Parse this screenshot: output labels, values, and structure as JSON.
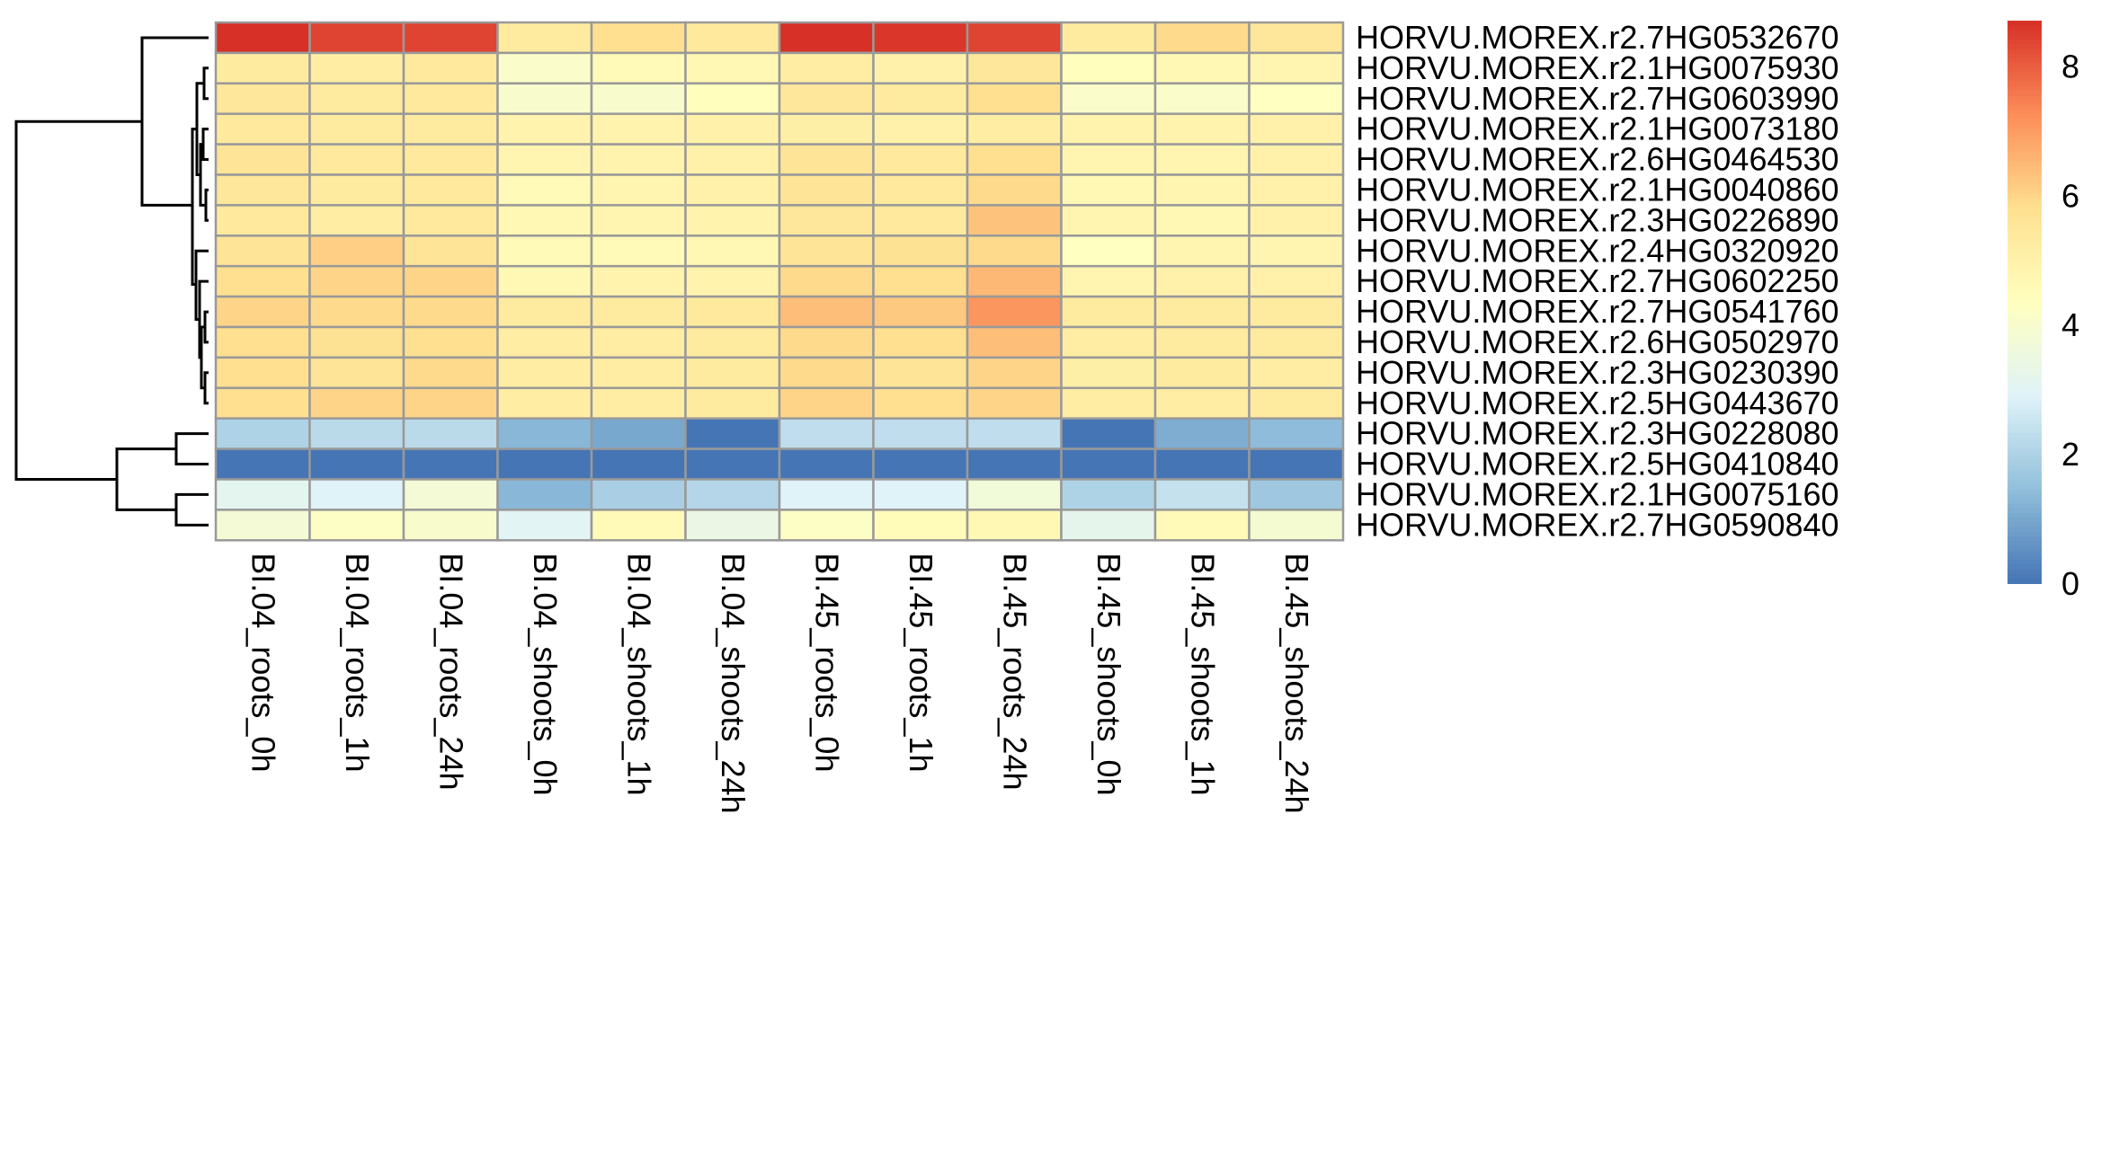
{
  "chart_data": {
    "type": "heatmap",
    "columns": [
      "BI.04_roots_0h",
      "BI.04_roots_1h",
      "BI.04_roots_24h",
      "BI.04_shoots_0h",
      "BI.04_shoots_1h",
      "BI.04_shoots_24h",
      "BI.45_roots_0h",
      "BI.45_roots_1h",
      "BI.45_roots_24h",
      "BI.45_shoots_0h",
      "BI.45_shoots_1h",
      "BI.45_shoots_24h"
    ],
    "rows": [
      "HORVU.MOREX.r2.7HG0532670",
      "HORVU.MOREX.r2.1HG0075930",
      "HORVU.MOREX.r2.7HG0603990",
      "HORVU.MOREX.r2.1HG0073180",
      "HORVU.MOREX.r2.6HG0464530",
      "HORVU.MOREX.r2.1HG0040860",
      "HORVU.MOREX.r2.3HG0226890",
      "HORVU.MOREX.r2.4HG0320920",
      "HORVU.MOREX.r2.7HG0602250",
      "HORVU.MOREX.r2.7HG0541760",
      "HORVU.MOREX.r2.6HG0502970",
      "HORVU.MOREX.r2.3HG0230390",
      "HORVU.MOREX.r2.5HG0443670",
      "HORVU.MOREX.r2.3HG0228080",
      "HORVU.MOREX.r2.5HG0410840",
      "HORVU.MOREX.r2.1HG0075160",
      "HORVU.MOREX.r2.7HG0590840"
    ],
    "values": [
      [
        8.7,
        8.4,
        8.4,
        5.3,
        5.8,
        5.4,
        8.7,
        8.6,
        8.4,
        5.3,
        5.9,
        5.5
      ],
      [
        5.3,
        5.2,
        5.4,
        4.1,
        4.6,
        4.7,
        5.2,
        5.0,
        5.5,
        4.4,
        4.7,
        4.8
      ],
      [
        5.5,
        5.3,
        5.4,
        4.0,
        4.0,
        4.4,
        5.5,
        5.3,
        5.8,
        4.1,
        4.1,
        4.3
      ],
      [
        5.4,
        5.3,
        5.3,
        4.9,
        4.9,
        5.0,
        5.1,
        5.0,
        5.2,
        4.9,
        4.9,
        5.0
      ],
      [
        5.6,
        5.4,
        5.4,
        4.8,
        4.9,
        5.0,
        5.6,
        5.4,
        5.8,
        4.8,
        4.8,
        5.0
      ],
      [
        5.5,
        5.3,
        5.4,
        4.6,
        4.8,
        5.0,
        5.6,
        5.4,
        5.9,
        4.7,
        4.8,
        5.0
      ],
      [
        5.4,
        5.2,
        5.4,
        4.7,
        4.8,
        4.9,
        5.5,
        5.4,
        6.3,
        4.8,
        4.7,
        5.0
      ],
      [
        5.6,
        6.1,
        5.6,
        4.6,
        4.6,
        4.7,
        5.6,
        5.7,
        5.9,
        4.3,
        4.8,
        4.8
      ],
      [
        5.8,
        6.0,
        6.0,
        4.7,
        4.9,
        4.9,
        5.9,
        5.8,
        6.5,
        4.8,
        5.0,
        5.0
      ],
      [
        6.0,
        5.9,
        5.9,
        5.3,
        5.3,
        5.4,
        6.4,
        6.2,
        7.1,
        5.3,
        5.3,
        5.3
      ],
      [
        5.8,
        5.7,
        5.8,
        5.2,
        5.2,
        5.3,
        5.9,
        5.8,
        6.4,
        5.2,
        5.3,
        5.3
      ],
      [
        5.8,
        5.6,
        5.9,
        5.2,
        5.2,
        5.3,
        5.9,
        5.6,
        6.0,
        5.1,
        5.3,
        5.2
      ],
      [
        5.8,
        6.0,
        6.0,
        5.2,
        5.2,
        5.3,
        6.0,
        5.8,
        6.0,
        5.2,
        5.2,
        5.3
      ],
      [
        2.0,
        2.2,
        2.2,
        1.3,
        1.0,
        0.0,
        2.3,
        2.3,
        2.3,
        0.0,
        1.1,
        1.4
      ],
      [
        0.0,
        0.0,
        0.0,
        0.0,
        0.0,
        0.0,
        0.0,
        0.0,
        0.0,
        0.0,
        0.0,
        0.0
      ],
      [
        3.1,
        2.9,
        3.8,
        1.3,
        1.9,
        2.1,
        2.9,
        2.9,
        3.7,
        2.0,
        2.4,
        1.7
      ],
      [
        3.8,
        4.2,
        4.0,
        3.0,
        4.6,
        3.4,
        4.2,
        4.5,
        4.7,
        3.2,
        4.6,
        3.9
      ]
    ],
    "legend": {
      "ticks": [
        0,
        2,
        4,
        6,
        8
      ],
      "range": [
        0,
        8.7
      ],
      "colors": [
        "#4575B4",
        "#91BFDB",
        "#E0F3F8",
        "#FFFFBF",
        "#FEE090",
        "#FC8D59",
        "#D73027"
      ]
    },
    "cell_border_color": "#999999",
    "row_dendrogram": {
      "description": "hierarchical clustering of rows",
      "leaf_order": [
        0,
        1,
        2,
        3,
        4,
        5,
        6,
        7,
        8,
        9,
        10,
        11,
        12,
        13,
        14,
        15,
        16
      ]
    }
  }
}
